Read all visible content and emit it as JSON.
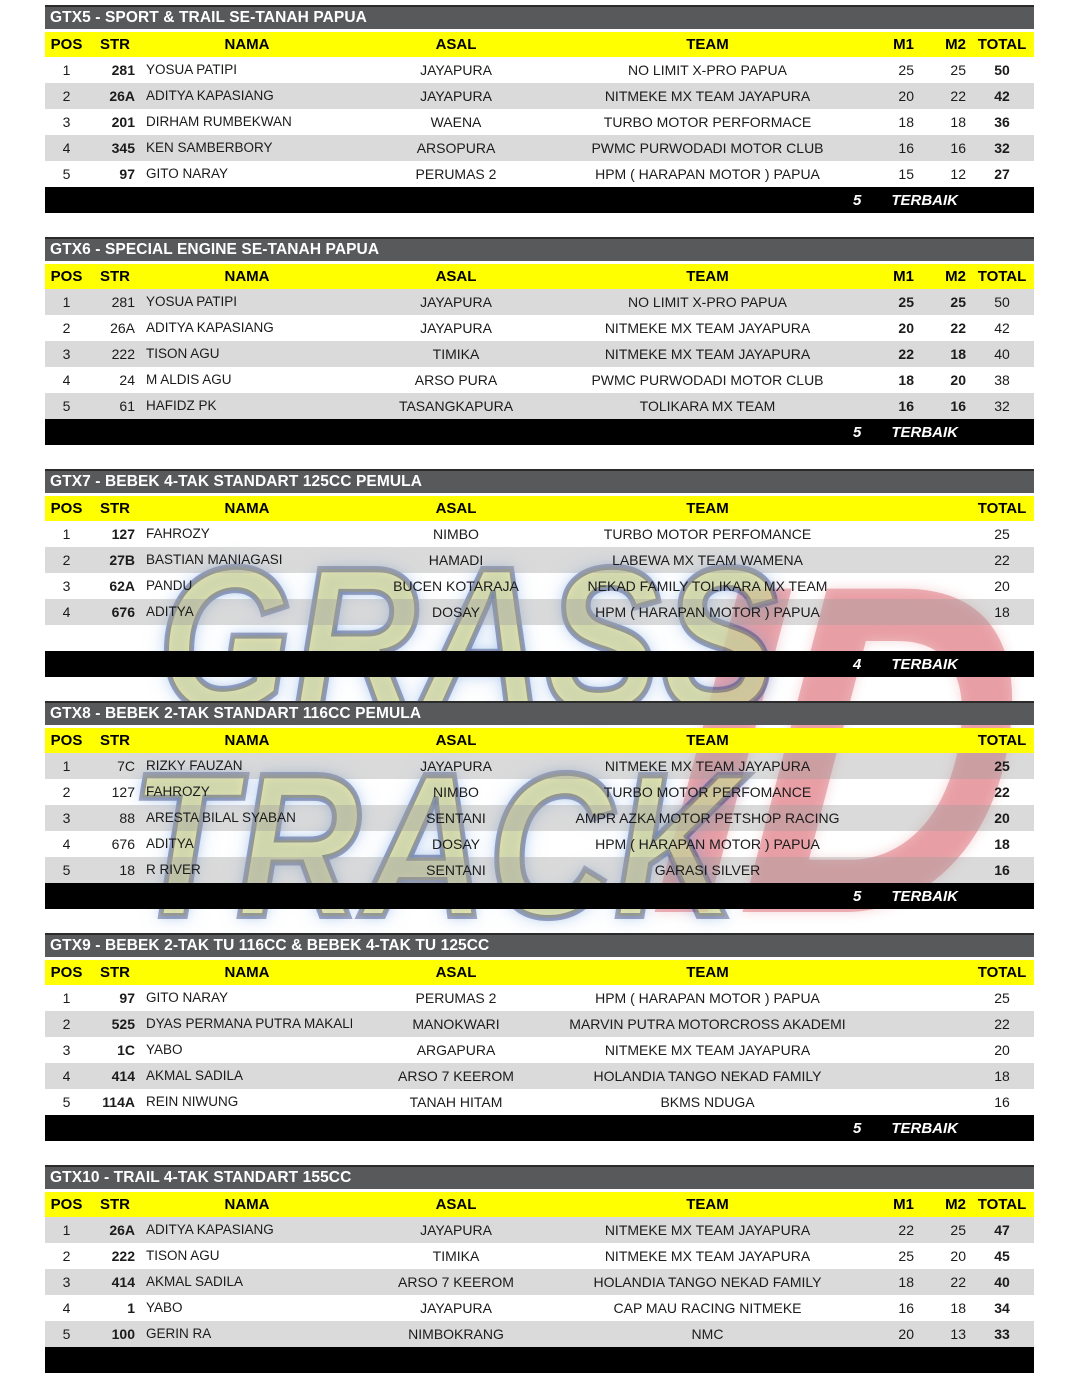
{
  "watermark": {
    "line1": "GRASS",
    "line2": "TRACK",
    "badge": "ID",
    "fill_color": "#F3E678",
    "outline_color": "#232D69",
    "badge_color": "#C61E2A"
  },
  "colors": {
    "title_bar": "#58595B",
    "header_bg": "#FFFF00",
    "stripe": "#DADADA",
    "footer_bg": "#000000"
  },
  "tables": [
    {
      "title": "GTX5 - SPORT & TRAIL SE-TANAH PAPUA",
      "columns": {
        "pos": "POS",
        "str": "STR",
        "nama": "NAMA",
        "asal": "ASAL",
        "team": "TEAM",
        "m1": "M1",
        "m2": "M2",
        "total": "TOTAL"
      },
      "style": {
        "str_bold": true,
        "m_bold": false,
        "total_bold": true,
        "stripe_first_row": false
      },
      "rows": [
        {
          "pos": "1",
          "str": "281",
          "nama": "YOSUA PATIPI",
          "asal": "JAYAPURA",
          "team": "NO LIMIT X-PRO PAPUA",
          "m1": "25",
          "m2": "25",
          "total": "50"
        },
        {
          "pos": "2",
          "str": "26A",
          "nama": "ADITYA KAPASIANG",
          "asal": "JAYAPURA",
          "team": "NITMEKE MX TEAM JAYAPURA",
          "m1": "20",
          "m2": "22",
          "total": "42"
        },
        {
          "pos": "3",
          "str": "201",
          "nama": "DIRHAM RUMBEKWAN",
          "asal": "WAENA",
          "team": "TURBO MOTOR PERFORMACE",
          "m1": "18",
          "m2": "18",
          "total": "36"
        },
        {
          "pos": "4",
          "str": "345",
          "nama": "KEN SAMBERBORY",
          "asal": "ARSOPURA",
          "team": "PWMC PURWODADI MOTOR CLUB",
          "m1": "16",
          "m2": "16",
          "total": "32"
        },
        {
          "pos": "5",
          "str": "97",
          "nama": "GITO NARAY",
          "asal": "PERUMAS 2",
          "team": "HPM ( HARAPAN MOTOR ) PAPUA",
          "m1": "15",
          "m2": "12",
          "total": "27"
        }
      ],
      "empty_rows": 0,
      "footer": {
        "count": "5",
        "label": "TERBAIK"
      }
    },
    {
      "title": "GTX6 - SPECIAL ENGINE SE-TANAH PAPUA",
      "columns": {
        "pos": "POS",
        "str": "STR",
        "nama": "NAMA",
        "asal": "ASAL",
        "team": "TEAM",
        "m1": "M1",
        "m2": "M2",
        "total": "TOTAL"
      },
      "style": {
        "str_bold": false,
        "m_bold": true,
        "total_bold": false,
        "stripe_first_row": true
      },
      "rows": [
        {
          "pos": "1",
          "str": "281",
          "nama": "YOSUA PATIPI",
          "asal": "JAYAPURA",
          "team": "NO LIMIT X-PRO PAPUA",
          "m1": "25",
          "m2": "25",
          "total": "50"
        },
        {
          "pos": "2",
          "str": "26A",
          "nama": "ADITYA KAPASIANG",
          "asal": "JAYAPURA",
          "team": "NITMEKE MX TEAM JAYAPURA",
          "m1": "20",
          "m2": "22",
          "total": "42"
        },
        {
          "pos": "3",
          "str": "222",
          "nama": "TISON AGU",
          "asal": "TIMIKA",
          "team": "NITMEKE MX TEAM JAYAPURA",
          "m1": "22",
          "m2": "18",
          "total": "40"
        },
        {
          "pos": "4",
          "str": "24",
          "nama": "M ALDIS AGU",
          "asal": "ARSO PURA",
          "team": "PWMC PURWODADI MOTOR CLUB",
          "m1": "18",
          "m2": "20",
          "total": "38"
        },
        {
          "pos": "5",
          "str": "61",
          "nama": "HAFIDZ PK",
          "asal": "TASANGKAPURA",
          "team": "TOLIKARA MX TEAM",
          "m1": "16",
          "m2": "16",
          "total": "32"
        }
      ],
      "empty_rows": 0,
      "footer": {
        "count": "5",
        "label": "TERBAIK"
      }
    },
    {
      "title": "GTX7 - BEBEK 4-TAK STANDART 125CC PEMULA",
      "columns": {
        "pos": "POS",
        "str": "STR",
        "nama": "NAMA",
        "asal": "ASAL",
        "team": "TEAM",
        "m1": "",
        "m2": "",
        "total": "TOTAL"
      },
      "style": {
        "str_bold": true,
        "m_bold": false,
        "total_bold": false,
        "stripe_first_row": false
      },
      "rows": [
        {
          "pos": "1",
          "str": "127",
          "nama": "FAHROZY",
          "asal": "NIMBO",
          "team": "TURBO MOTOR PERFOMANCE",
          "m1": "",
          "m2": "",
          "total": "25"
        },
        {
          "pos": "2",
          "str": "27B",
          "nama": "BASTIAN MANIAGASI",
          "asal": "HAMADI",
          "team": "LABEWA MX TEAM WAMENA",
          "m1": "",
          "m2": "",
          "total": "22"
        },
        {
          "pos": "3",
          "str": "62A",
          "nama": "PANDU",
          "asal": "BUCEN KOTARAJA",
          "team": "NEKAD FAMILY TOLIKARA MX TEAM",
          "m1": "",
          "m2": "",
          "total": "20"
        },
        {
          "pos": "4",
          "str": "676",
          "nama": "ADITYA",
          "asal": "DOSAY",
          "team": "HPM ( HARAPAN MOTOR ) PAPUA",
          "m1": "",
          "m2": "",
          "total": "18"
        }
      ],
      "empty_rows": 1,
      "footer": {
        "count": "4",
        "label": "TERBAIK"
      }
    },
    {
      "title": "GTX8 - BEBEK 2-TAK STANDART 116CC PEMULA",
      "columns": {
        "pos": "POS",
        "str": "STR",
        "nama": "NAMA",
        "asal": "ASAL",
        "team": "TEAM",
        "m1": "",
        "m2": "",
        "total": "TOTAL"
      },
      "style": {
        "str_bold": false,
        "m_bold": false,
        "total_bold": true,
        "stripe_first_row": true
      },
      "rows": [
        {
          "pos": "1",
          "str": "7C",
          "nama": "RIZKY FAUZAN",
          "asal": "JAYAPURA",
          "team": "NITMEKE MX TEAM JAYAPURA",
          "m1": "",
          "m2": "",
          "total": "25"
        },
        {
          "pos": "2",
          "str": "127",
          "nama": "FAHROZY",
          "asal": "NIMBO",
          "team": "TURBO MOTOR PERFOMANCE",
          "m1": "",
          "m2": "",
          "total": "22"
        },
        {
          "pos": "3",
          "str": "88",
          "nama": "ARESTA BILAL SYABAN",
          "asal": "SENTANI",
          "team": "AMPR AZKA MOTOR PETSHOP RACING",
          "m1": "",
          "m2": "",
          "total": "20"
        },
        {
          "pos": "4",
          "str": "676",
          "nama": "ADITYA",
          "asal": "DOSAY",
          "team": "HPM ( HARAPAN MOTOR ) PAPUA",
          "m1": "",
          "m2": "",
          "total": "18"
        },
        {
          "pos": "5",
          "str": "18",
          "nama": "R RIVER",
          "asal": "SENTANI",
          "team": "GARASI SILVER",
          "m1": "",
          "m2": "",
          "total": "16"
        }
      ],
      "empty_rows": 0,
      "footer": {
        "count": "5",
        "label": "TERBAIK"
      }
    },
    {
      "title": "GTX9 - BEBEK 2-TAK TU 116CC & BEBEK 4-TAK TU 125CC",
      "columns": {
        "pos": "POS",
        "str": "STR",
        "nama": "NAMA",
        "asal": "ASAL",
        "team": "TEAM",
        "m1": "",
        "m2": "",
        "total": "TOTAL"
      },
      "style": {
        "str_bold": true,
        "m_bold": false,
        "total_bold": false,
        "stripe_first_row": false
      },
      "rows": [
        {
          "pos": "1",
          "str": "97",
          "nama": "GITO NARAY",
          "asal": "PERUMAS 2",
          "team": "HPM ( HARAPAN MOTOR ) PAPUA",
          "m1": "",
          "m2": "",
          "total": "25"
        },
        {
          "pos": "2",
          "str": "525",
          "nama": "DYAS PERMANA PUTRA MAKALEW",
          "asal": "MANOKWARI",
          "team": "MARVIN PUTRA MOTORCROSS AKADEMI",
          "m1": "",
          "m2": "",
          "total": "22"
        },
        {
          "pos": "3",
          "str": "1C",
          "nama": "YABO",
          "asal": "ARGAPURA",
          "team": "NITMEKE MX TEAM JAYAPURA",
          "m1": "",
          "m2": "",
          "total": "20"
        },
        {
          "pos": "4",
          "str": "414",
          "nama": "AKMAL SADILA",
          "asal": "ARSO 7 KEEROM",
          "team": "HOLANDIA TANGO NEKAD FAMILY",
          "m1": "",
          "m2": "",
          "total": "18"
        },
        {
          "pos": "5",
          "str": "114A",
          "nama": "REIN NIWUNG",
          "asal": "TANAH HITAM",
          "team": "BKMS NDUGA",
          "m1": "",
          "m2": "",
          "total": "16"
        }
      ],
      "empty_rows": 0,
      "footer": {
        "count": "5",
        "label": "TERBAIK"
      }
    },
    {
      "title": "GTX10 - TRAIL 4-TAK STANDART 155CC",
      "columns": {
        "pos": "POS",
        "str": "STR",
        "nama": "NAMA",
        "asal": "ASAL",
        "team": "TEAM",
        "m1": "M1",
        "m2": "M2",
        "total": "TOTAL"
      },
      "style": {
        "str_bold": true,
        "m_bold": false,
        "total_bold": true,
        "stripe_first_row": true
      },
      "rows": [
        {
          "pos": "1",
          "str": "26A",
          "nama": "ADITYA KAPASIANG",
          "asal": "JAYAPURA",
          "team": "NITMEKE MX TEAM JAYAPURA",
          "m1": "22",
          "m2": "25",
          "total": "47"
        },
        {
          "pos": "2",
          "str": "222",
          "nama": "TISON AGU",
          "asal": "TIMIKA",
          "team": "NITMEKE MX TEAM JAYAPURA",
          "m1": "25",
          "m2": "20",
          "total": "45"
        },
        {
          "pos": "3",
          "str": "414",
          "nama": "AKMAL SADILA",
          "asal": "ARSO 7 KEEROM",
          "team": "HOLANDIA TANGO NEKAD FAMILY",
          "m1": "18",
          "m2": "22",
          "total": "40"
        },
        {
          "pos": "4",
          "str": "1",
          "nama": "YABO",
          "asal": "JAYAPURA",
          "team": "CAP MAU RACING NITMEKE",
          "m1": "16",
          "m2": "18",
          "total": "34"
        },
        {
          "pos": "5",
          "str": "100",
          "nama": "GERIN RA",
          "asal": "NIMBOKRANG",
          "team": "NMC",
          "m1": "20",
          "m2": "13",
          "total": "33"
        }
      ],
      "empty_rows": 0,
      "footer": {
        "count": "",
        "label": ""
      }
    }
  ]
}
